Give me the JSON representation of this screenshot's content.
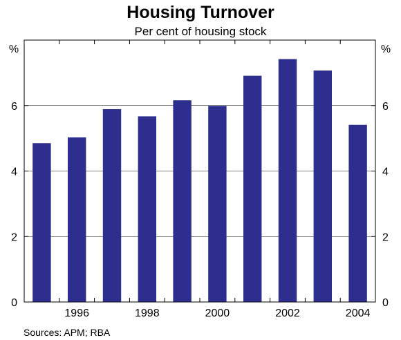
{
  "chart_data": {
    "type": "bar",
    "title": "Housing Turnover",
    "subtitle": "Per cent of housing stock",
    "ylabel_left": "%",
    "ylabel_right": "%",
    "xlabel": "",
    "categories": [
      "1995",
      "1996",
      "1997",
      "1998",
      "1999",
      "2000",
      "2001",
      "2002",
      "2003",
      "2004"
    ],
    "x_tick_labels": [
      "1996",
      "1998",
      "2000",
      "2002",
      "2004"
    ],
    "y_tick_labels": [
      "0",
      "2",
      "4",
      "6"
    ],
    "values": [
      4.85,
      5.03,
      5.89,
      5.67,
      6.16,
      5.99,
      6.91,
      7.42,
      7.07,
      5.41
    ],
    "ylim": [
      0,
      8
    ],
    "grid": true,
    "bar_color": "#2e2e8f",
    "source": "Sources: APM; RBA"
  }
}
